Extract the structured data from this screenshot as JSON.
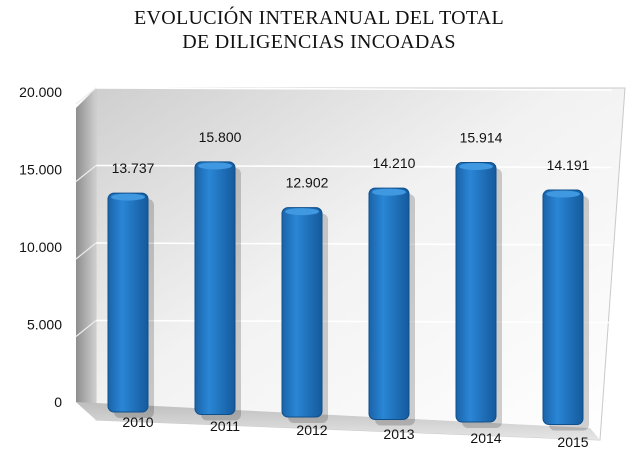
{
  "chart_data": {
    "type": "bar",
    "title_line1": "EVOLUCIÓN INTERANUAL DEL TOTAL",
    "title_line2": "DE DILIGENCIAS INCOADAS",
    "categories": [
      "2010",
      "2011",
      "2012",
      "2013",
      "2014",
      "2015"
    ],
    "values": [
      13737,
      15800,
      12902,
      14210,
      15914,
      14191
    ],
    "data_labels": [
      "13.737",
      "15.800",
      "12.902",
      "14.210",
      "15.914",
      "14.191"
    ],
    "y_ticks": [
      0,
      5000,
      10000,
      15000,
      20000
    ],
    "y_tick_labels": [
      "0",
      "5.000",
      "10.000",
      "15.000",
      "20.000"
    ],
    "ylim": [
      0,
      20000
    ],
    "grid": true,
    "legend": "none",
    "colors": {
      "bar": "#1b6fba",
      "bar_dark": "#0f4f8c",
      "wall": "#d8d8d8"
    }
  }
}
